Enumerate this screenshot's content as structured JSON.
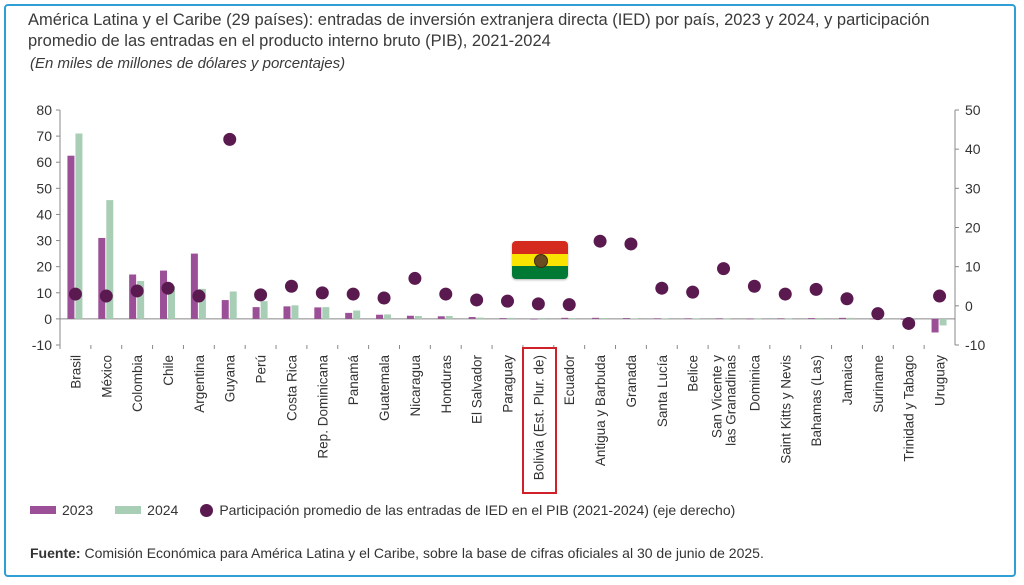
{
  "header": {
    "title": "América Latina y el Caribe (29 países): entradas de inversión extranjera directa (IED) por país, 2023 y 2024, y participación promedio de las entradas en el producto interno bruto (PIB), 2021-2024",
    "subtitle": "(En miles de millones de dólares y porcentajes)"
  },
  "legend": {
    "s2023": "2023",
    "s2024": "2024",
    "dots": "Participación promedio de las entradas de IED en el PIB (2021-2024) (eje derecho)"
  },
  "source": {
    "label": "Fuente:",
    "text": "Comisión Económica para América Latina y el Caribe, sobre la base de cifras oficiales al 30 de junio de 2025."
  },
  "colors": {
    "bar2023": "#9b4f96",
    "bar2024": "#a8cfb5",
    "dot": "#5a1a4f",
    "frame": "#2f9fd6",
    "highlight": "#d0202a",
    "flag_red": "#d52b1e",
    "flag_yellow": "#f9e300",
    "flag_green": "#007934"
  },
  "highlight": {
    "country": "Bolivia (Est. Plur. de)",
    "icon": "bolivia-flag-icon"
  },
  "chart_data": {
    "type": "bar",
    "categories": [
      "Brasil",
      "México",
      "Colombia",
      "Chile",
      "Argentina",
      "Guyana",
      "Perú",
      "Costa Rica",
      "Rep. Dominicana",
      "Panamá",
      "Guatemala",
      "Nicaragua",
      "Honduras",
      "El Salvador",
      "Paraguay",
      "Bolivia (Est. Plur. de)",
      "Ecuador",
      "Antigua y Barbuda",
      "Granada",
      "Santa Lucía",
      "Belice",
      "San Vicente y las Granadinas",
      "Dominica",
      "Saint Kitts y Nevis",
      "Bahamas (Las)",
      "Jamaica",
      "Suriname",
      "Trinidad y Tabago",
      "Uruguay"
    ],
    "series": [
      {
        "name": "2023",
        "axis": "left",
        "kind": "bar",
        "values": [
          62.5,
          31,
          17,
          18.5,
          25,
          7.2,
          4.5,
          4.8,
          4.4,
          2.3,
          1.6,
          1.2,
          1.0,
          0.7,
          0.3,
          0.0,
          0.4,
          0.4,
          0.3,
          0.2,
          0.2,
          0.2,
          0.1,
          0.2,
          0.3,
          0.4,
          0.1,
          -0.3,
          -5.2
        ]
      },
      {
        "name": "2024",
        "axis": "left",
        "kind": "bar",
        "values": [
          71,
          45.5,
          14.5,
          12.5,
          11.5,
          10.5,
          6.8,
          5.2,
          4.5,
          3.2,
          1.7,
          1.1,
          1.1,
          0.5,
          0.4,
          0.3,
          0.3,
          0.3,
          0.2,
          0.2,
          0.2,
          0.1,
          0.1,
          0.1,
          0.3,
          0.4,
          0.2,
          -0.5,
          -2.5
        ]
      },
      {
        "name": "Participación promedio de las entradas de IED en el PIB (2021-2024) (eje derecho)",
        "axis": "right",
        "kind": "scatter",
        "values": [
          3.0,
          2.5,
          3.8,
          4.5,
          2.5,
          42.5,
          2.8,
          5.0,
          3.3,
          3.0,
          2.0,
          7.0,
          3.0,
          1.5,
          1.2,
          0.5,
          0.3,
          16.5,
          15.8,
          4.5,
          3.5,
          9.5,
          5.0,
          3.0,
          4.2,
          1.8,
          -2.0,
          -4.5,
          2.5
        ]
      }
    ],
    "left_axis": {
      "min": -10,
      "max": 80,
      "ticks": [
        -10,
        0,
        10,
        20,
        30,
        40,
        50,
        60,
        70,
        80
      ]
    },
    "right_axis": {
      "min": -10,
      "max": 50,
      "ticks": [
        -10,
        0,
        10,
        20,
        30,
        40,
        50
      ]
    },
    "grid": false,
    "legend_position": "bottom-left"
  }
}
